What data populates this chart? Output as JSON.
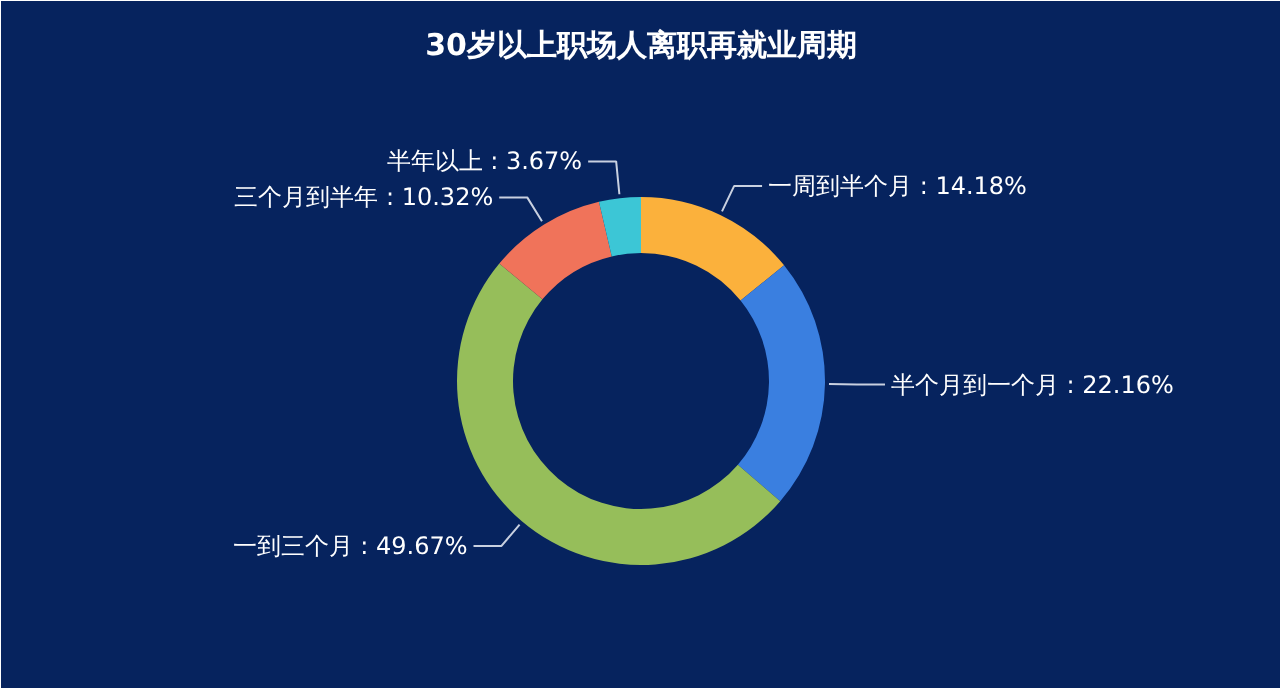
{
  "chart_data": {
    "type": "donut",
    "title": "30岁以上职场人离职再就业周期",
    "categories": [
      "一周到半个月",
      "半个月到一个月",
      "一到三个月",
      "三个月到半年",
      "半年以上"
    ],
    "values": [
      14.18,
      22.16,
      49.67,
      10.32,
      3.67
    ],
    "value_labels": [
      "14.18%",
      "22.16%",
      "49.67%",
      "10.32%",
      "3.67%"
    ],
    "colors": [
      "#fbb13c",
      "#3a7fe0",
      "#96be5a",
      "#f0735a",
      "#3cc6d6"
    ]
  }
}
